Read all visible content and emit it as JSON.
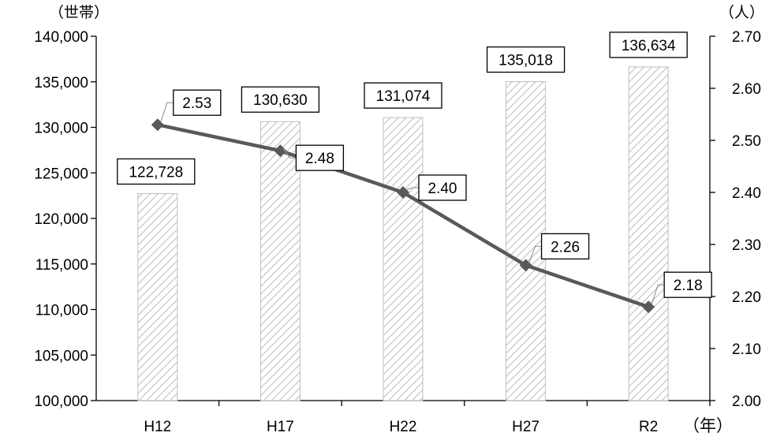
{
  "chart_data": {
    "type": "bar",
    "categories": [
      "H12",
      "H17",
      "H22",
      "H27",
      "R2"
    ],
    "series": [
      {
        "type": "bar",
        "axis": "left",
        "values": [
          122728,
          130630,
          131074,
          135018,
          136634
        ],
        "labels": [
          "122,728",
          "130,630",
          "131,074",
          "135,018",
          "136,634"
        ],
        "fill": "hatched-gray"
      },
      {
        "type": "line",
        "axis": "right",
        "marker": "diamond",
        "values": [
          2.53,
          2.48,
          2.4,
          2.26,
          2.18
        ],
        "labels": [
          "2.53",
          "2.48",
          "2.40",
          "2.26",
          "2.18"
        ]
      }
    ],
    "y_left": {
      "unit_label": "（世帯）",
      "ylim": [
        100000,
        140000
      ],
      "ticks": [
        "100,000",
        "105,000",
        "110,000",
        "115,000",
        "120,000",
        "125,000",
        "130,000",
        "135,000",
        "140,000"
      ]
    },
    "y_right": {
      "unit_label": "（人）",
      "ylim": [
        2.0,
        2.7
      ],
      "ticks": [
        "2.00",
        "2.10",
        "2.20",
        "2.30",
        "2.40",
        "2.50",
        "2.60",
        "2.70"
      ]
    },
    "x_unit_label": "（年）",
    "grid": false,
    "legend": "none",
    "colors": {
      "line": "#595959",
      "bar_stroke": "#bfbfbf",
      "hatch": "#bfbfbf",
      "axis": "#000000"
    }
  }
}
